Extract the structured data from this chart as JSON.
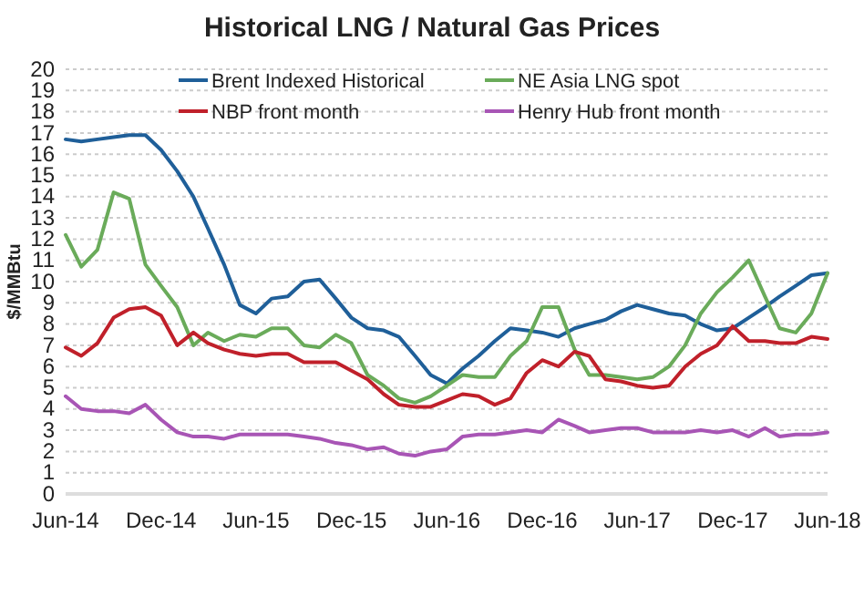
{
  "chart_data": {
    "type": "line",
    "title": "Historical LNG / Natural Gas Prices",
    "ylabel": "$/MMBtu",
    "x": [
      "2014-06",
      "2014-07",
      "2014-08",
      "2014-09",
      "2014-10",
      "2014-11",
      "2014-12",
      "2015-01",
      "2015-02",
      "2015-03",
      "2015-04",
      "2015-05",
      "2015-06",
      "2015-07",
      "2015-08",
      "2015-09",
      "2015-10",
      "2015-11",
      "2015-12",
      "2016-01",
      "2016-02",
      "2016-03",
      "2016-04",
      "2016-05",
      "2016-06",
      "2016-07",
      "2016-08",
      "2016-09",
      "2016-10",
      "2016-11",
      "2016-12",
      "2017-01",
      "2017-02",
      "2017-03",
      "2017-04",
      "2017-05",
      "2017-06",
      "2017-07",
      "2017-08",
      "2017-09",
      "2017-10",
      "2017-11",
      "2017-12",
      "2018-01",
      "2018-02",
      "2018-03",
      "2018-04",
      "2018-05",
      "2018-06"
    ],
    "series": [
      {
        "name": "Brent Indexed Historical",
        "color": "#1f5f99",
        "values": [
          16.7,
          16.6,
          16.7,
          16.8,
          16.9,
          16.9,
          16.2,
          15.2,
          14.0,
          12.5,
          10.8,
          8.9,
          8.5,
          9.2,
          9.3,
          10.0,
          10.1,
          9.2,
          8.3,
          7.8,
          7.7,
          7.4,
          6.5,
          5.6,
          5.2,
          5.9,
          6.5,
          7.2,
          7.8,
          7.7,
          7.6,
          7.4,
          7.8,
          8.0,
          8.2,
          8.6,
          8.9,
          8.7,
          8.5,
          8.4,
          8.0,
          7.7,
          7.8,
          8.3,
          8.8,
          9.3,
          9.8,
          10.3,
          10.4
        ]
      },
      {
        "name": "NE Asia LNG spot",
        "color": "#6aab5a",
        "values": [
          12.2,
          10.7,
          11.5,
          14.2,
          13.9,
          10.8,
          9.8,
          8.8,
          7.0,
          7.6,
          7.2,
          7.5,
          7.4,
          7.8,
          7.8,
          7.0,
          6.9,
          7.5,
          7.1,
          5.6,
          5.1,
          4.5,
          4.3,
          4.6,
          5.1,
          5.6,
          5.5,
          5.5,
          6.5,
          7.2,
          8.8,
          8.8,
          6.8,
          5.6,
          5.6,
          5.5,
          5.4,
          5.5,
          6.0,
          7.0,
          8.5,
          9.5,
          10.2,
          11.0,
          9.3,
          7.8,
          7.6,
          8.5,
          10.4
        ]
      },
      {
        "name": "NBP front month",
        "color": "#c0202a",
        "values": [
          6.9,
          6.5,
          7.1,
          8.3,
          8.7,
          8.8,
          8.4,
          7.0,
          7.6,
          7.1,
          6.8,
          6.6,
          6.5,
          6.6,
          6.6,
          6.2,
          6.2,
          6.2,
          5.8,
          5.4,
          4.7,
          4.2,
          4.1,
          4.1,
          4.4,
          4.7,
          4.6,
          4.2,
          4.5,
          5.7,
          6.3,
          6.0,
          6.7,
          6.5,
          5.4,
          5.3,
          5.1,
          5.0,
          5.1,
          6.0,
          6.6,
          7.0,
          7.9,
          7.2,
          7.2,
          7.1,
          7.1,
          7.4,
          7.3
        ]
      },
      {
        "name": "Henry Hub front month",
        "color": "#a855b5",
        "values": [
          4.6,
          4.0,
          3.9,
          3.9,
          3.8,
          4.2,
          3.5,
          2.9,
          2.7,
          2.7,
          2.6,
          2.8,
          2.8,
          2.8,
          2.8,
          2.7,
          2.6,
          2.4,
          2.3,
          2.1,
          2.2,
          1.9,
          1.8,
          2.0,
          2.1,
          2.7,
          2.8,
          2.8,
          2.9,
          3.0,
          2.9,
          3.5,
          3.2,
          2.9,
          3.0,
          3.1,
          3.1,
          2.9,
          2.9,
          2.9,
          3.0,
          2.9,
          3.0,
          2.7,
          3.1,
          2.7,
          2.8,
          2.8,
          2.9
        ]
      }
    ],
    "xlim": [
      "2014-06",
      "2018-06"
    ],
    "xticks": [
      {
        "value": "2014-06",
        "label": "Jun-14"
      },
      {
        "value": "2014-12",
        "label": "Dec-14"
      },
      {
        "value": "2015-06",
        "label": "Jun-15"
      },
      {
        "value": "2015-12",
        "label": "Dec-15"
      },
      {
        "value": "2016-06",
        "label": "Jun-16"
      },
      {
        "value": "2016-12",
        "label": "Dec-16"
      },
      {
        "value": "2017-06",
        "label": "Jun-17"
      },
      {
        "value": "2017-12",
        "label": "Dec-17"
      },
      {
        "value": "2018-06",
        "label": "Jun-18"
      }
    ],
    "ylim": [
      0,
      20
    ],
    "yticks": [
      0,
      1,
      2,
      3,
      4,
      5,
      6,
      7,
      8,
      9,
      10,
      11,
      12,
      13,
      14,
      15,
      16,
      17,
      18,
      19,
      20
    ],
    "grid": "y",
    "legend": "top",
    "marker": "none",
    "line_style": "solid"
  }
}
